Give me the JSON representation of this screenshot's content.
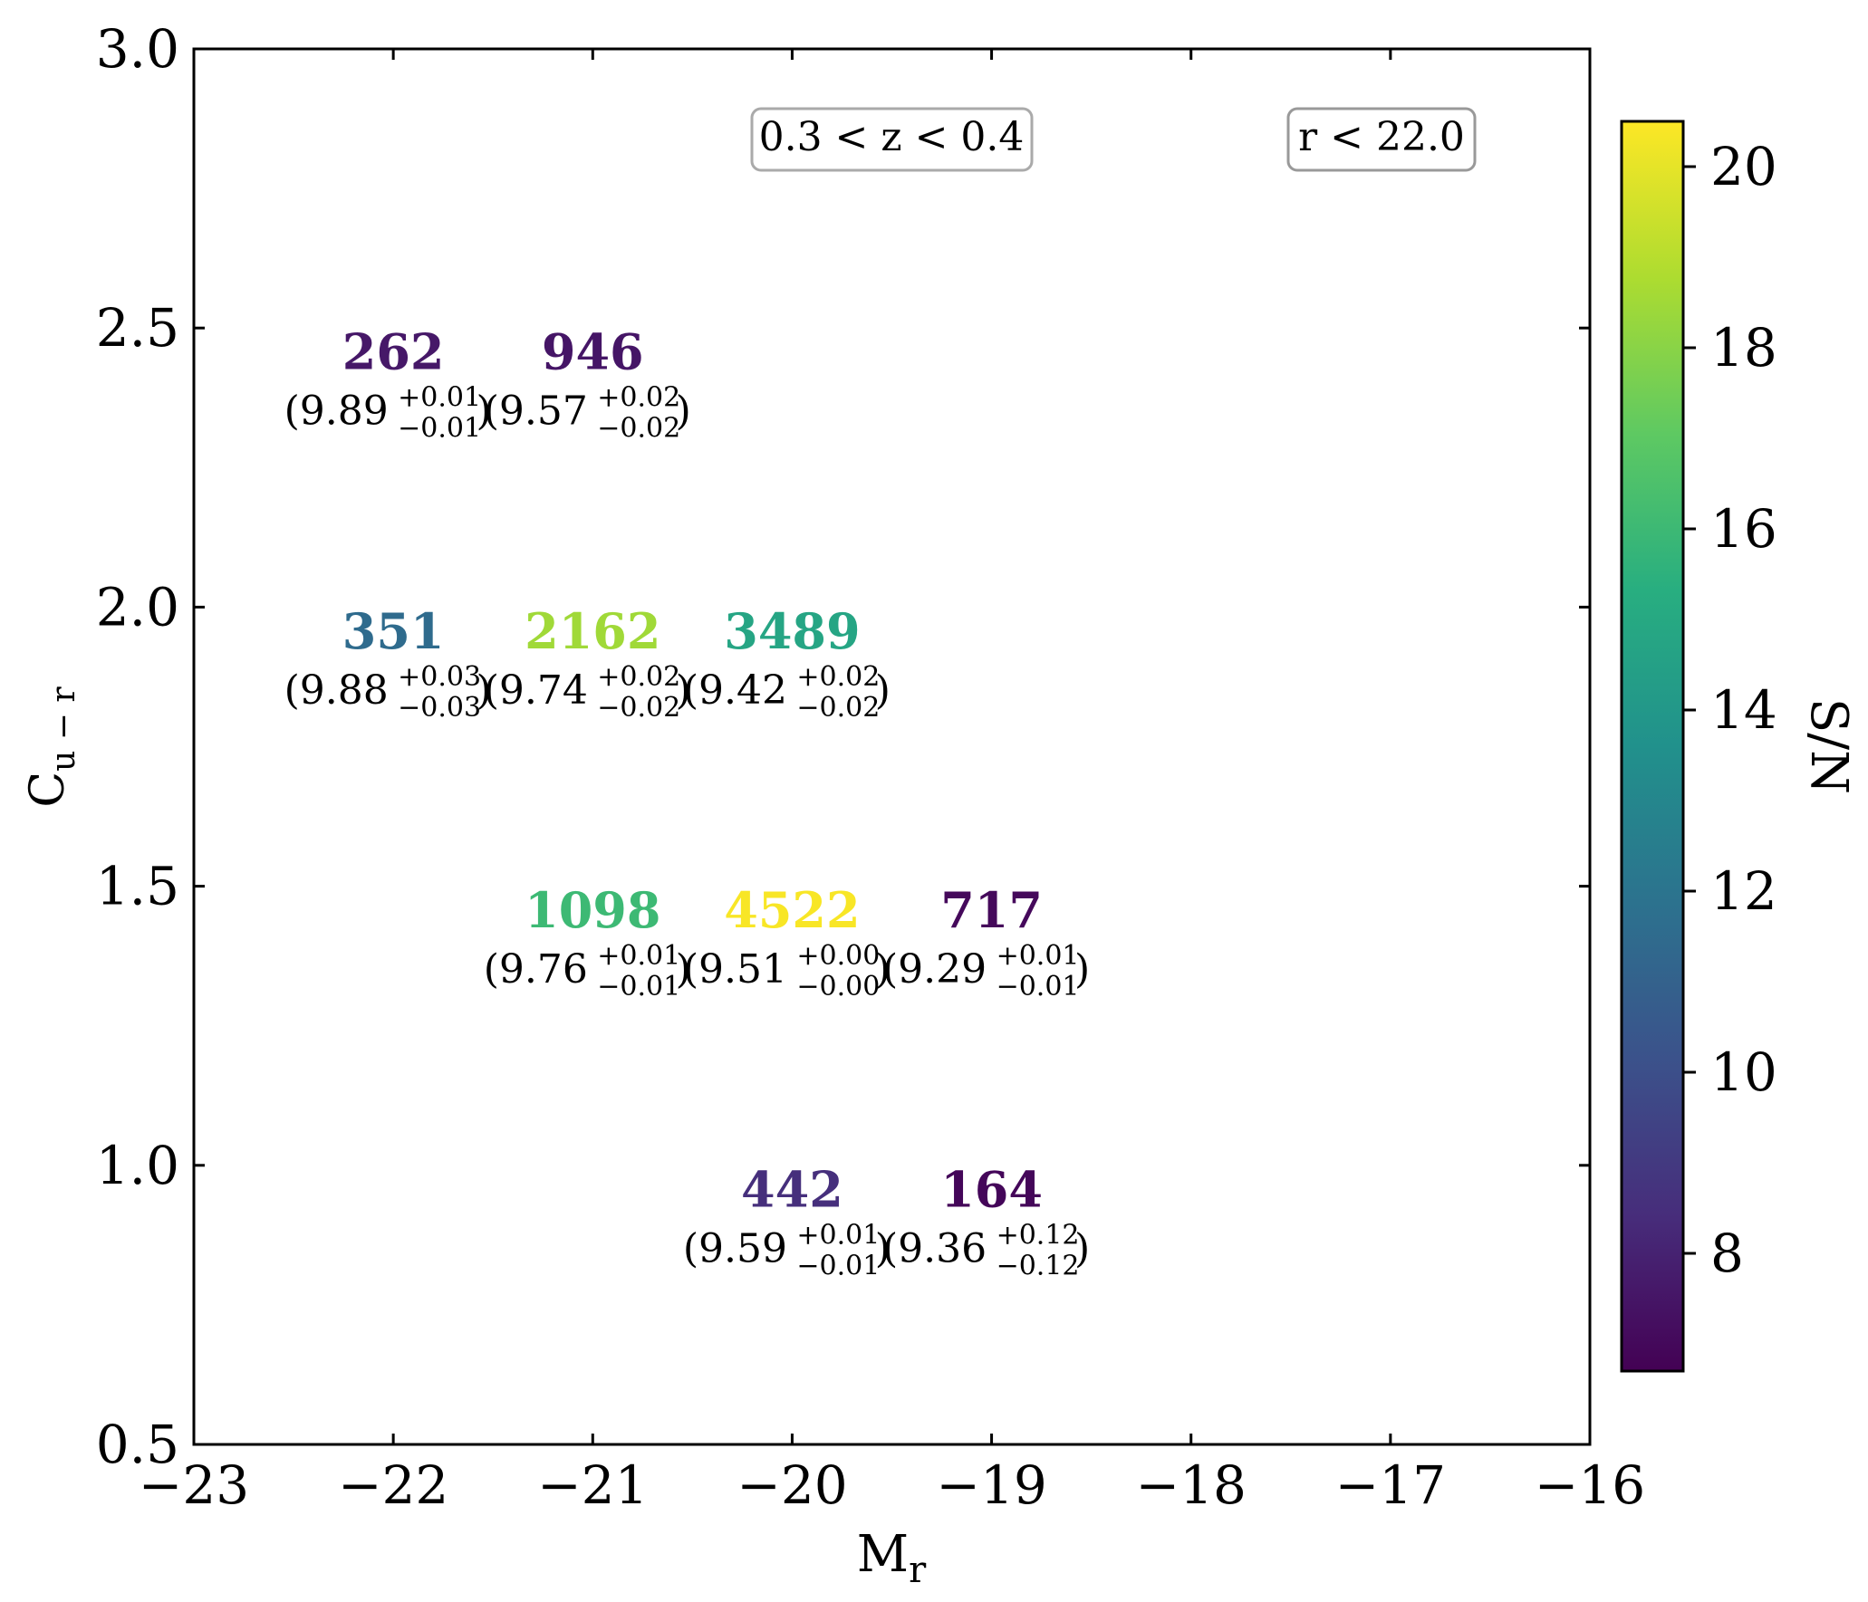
{
  "chart_data": {
    "type": "table",
    "xlabel_base": "M",
    "xlabel_sub": "r",
    "ylabel_base": "C",
    "ylabel_sub": "u − r",
    "xlim": [
      -23,
      -16
    ],
    "ylim": [
      0.5,
      3.0
    ],
    "xticks": [
      -23,
      -22,
      -21,
      -20,
      -19,
      -18,
      -17,
      -16
    ],
    "xtick_labels": [
      "−23",
      "−22",
      "−21",
      "−20",
      "−19",
      "−18",
      "−17",
      "−16"
    ],
    "yticks": [
      0.5,
      1.0,
      1.5,
      2.0,
      2.5,
      3.0
    ],
    "ytick_labels": [
      "0.5",
      "1.0",
      "1.5",
      "2.0",
      "2.5",
      "3.0"
    ],
    "annotation_redshift": "0.3 < z < 0.4",
    "annotation_mag": "r < 22.0",
    "colorbar": {
      "label": "S/N",
      "range": [
        6.7,
        20.5
      ],
      "ticks": [
        8,
        10,
        12,
        14,
        16,
        18,
        20
      ],
      "tick_labels": [
        "8",
        "10",
        "12",
        "14",
        "16",
        "18",
        "20"
      ],
      "colormap": "viridis"
    },
    "cells": [
      {
        "x": -22,
        "y": 2.35,
        "count": "262",
        "value": "9.89",
        "plus": "+0.01",
        "minus": "−0.01",
        "sn": 7.6
      },
      {
        "x": -21,
        "y": 2.35,
        "count": "946",
        "value": "9.57",
        "plus": "+0.02",
        "minus": "−0.02",
        "sn": 7.5
      },
      {
        "x": -22,
        "y": 1.85,
        "count": "351",
        "value": "9.88",
        "plus": "+0.03",
        "minus": "−0.03",
        "sn": 11.5
      },
      {
        "x": -21,
        "y": 1.85,
        "count": "2162",
        "value": "9.74",
        "plus": "+0.02",
        "minus": "−0.02",
        "sn": 18.5
      },
      {
        "x": -20,
        "y": 1.85,
        "count": "3489",
        "value": "9.42",
        "plus": "+0.02",
        "minus": "−0.02",
        "sn": 14.8
      },
      {
        "x": -21,
        "y": 1.35,
        "count": "1098",
        "value": "9.76",
        "plus": "+0.01",
        "minus": "−0.01",
        "sn": 16.0
      },
      {
        "x": -20,
        "y": 1.35,
        "count": "4522",
        "value": "9.51",
        "plus": "+0.00",
        "minus": "−0.00",
        "sn": 20.4
      },
      {
        "x": -19,
        "y": 1.35,
        "count": "717",
        "value": "9.29",
        "plus": "+0.01",
        "minus": "−0.01",
        "sn": 7.0
      },
      {
        "x": -20,
        "y": 0.85,
        "count": "442",
        "value": "9.59",
        "plus": "+0.01",
        "minus": "−0.01",
        "sn": 8.5
      },
      {
        "x": -19,
        "y": 0.85,
        "count": "164",
        "value": "9.36",
        "plus": "+0.12",
        "minus": "−0.12",
        "sn": 6.9
      }
    ]
  }
}
